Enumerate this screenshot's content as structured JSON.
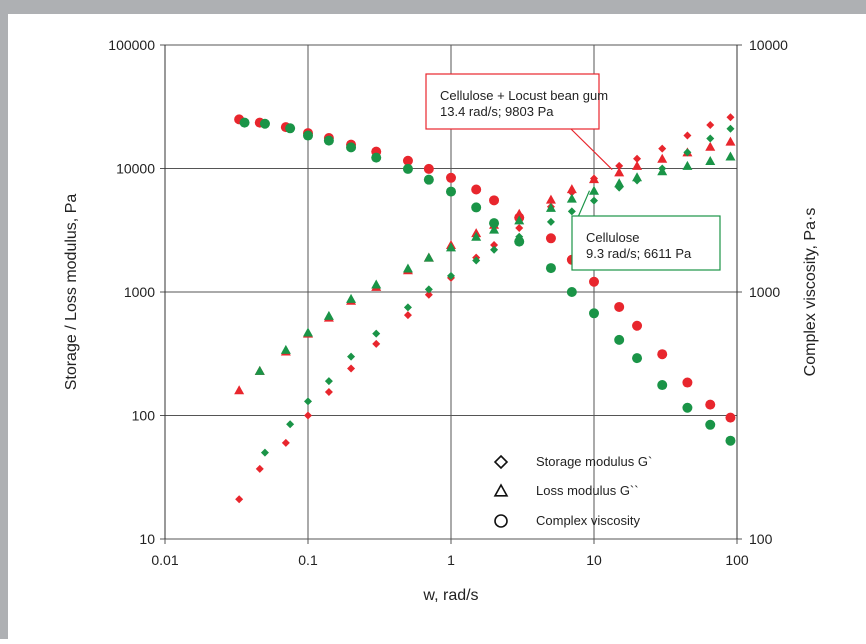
{
  "chart_data": {
    "type": "scatter",
    "title": "",
    "xlabel": "w, rad/s",
    "ylabel": "Storage / Loss modulus, Pa",
    "y2label": "Complex viscosity, Pa·s",
    "xscale": "log",
    "yscale": "log",
    "y2scale": "log",
    "xlim": [
      0.01,
      100
    ],
    "ylim": [
      10,
      100000
    ],
    "y2lim": [
      100,
      10000
    ],
    "x_ticks": [
      "0.01",
      "0.1",
      "1",
      "10",
      "100"
    ],
    "y_ticks": [
      "10",
      "100",
      "1000",
      "10000",
      "100000"
    ],
    "y2_ticks": [
      "100",
      "1000",
      "10000"
    ],
    "grid": true,
    "legend_position": "bottom-right",
    "legend": [
      {
        "marker": "diamond",
        "label": "Storage modulus G`"
      },
      {
        "marker": "triangle",
        "label": "Loss modulus G``"
      },
      {
        "marker": "circle",
        "label": "Complex viscosity"
      }
    ],
    "colors": {
      "cellulose_lbg": "#e8262d",
      "cellulose": "#1a9447",
      "axis": "#333333",
      "grid": "#555555"
    },
    "annotations": [
      {
        "lines": [
          "Cellulose + Locust bean gum",
          "13.4 rad/s; 9803 Pa"
        ],
        "box_color": "#e8262d",
        "point": [
          13.4,
          9803
        ]
      },
      {
        "lines": [
          "Cellulose",
          "9.3 rad/s; 6611 Pa"
        ],
        "box_color": "#1a9447",
        "point": [
          9.3,
          6611
        ]
      }
    ],
    "series": [
      {
        "group": "cellulose_lbg",
        "kind": "storage",
        "axis": "left",
        "x": [
          0.033,
          0.046,
          0.07,
          0.1,
          0.14,
          0.2,
          0.3,
          0.5,
          0.7,
          1,
          1.5,
          2,
          3,
          5,
          7,
          10,
          15,
          20,
          30,
          45,
          65,
          90
        ],
        "y": [
          21,
          37,
          60,
          100,
          155,
          240,
          380,
          650,
          950,
          1300,
          1900,
          2400,
          3300,
          4900,
          6400,
          8300,
          10500,
          12000,
          14500,
          18500,
          22500,
          26000
        ]
      },
      {
        "group": "cellulose",
        "kind": "storage",
        "axis": "left",
        "x": [
          0.05,
          0.075,
          0.1,
          0.14,
          0.2,
          0.3,
          0.5,
          0.7,
          1,
          1.5,
          2,
          3,
          5,
          7,
          10,
          15,
          20,
          30,
          45,
          65,
          90
        ],
        "y": [
          50,
          85,
          130,
          190,
          300,
          460,
          750,
          1050,
          1350,
          1800,
          2200,
          2800,
          3700,
          4500,
          5500,
          7000,
          8000,
          10000,
          13500,
          17500,
          21000
        ]
      },
      {
        "group": "cellulose_lbg",
        "kind": "loss",
        "axis": "left",
        "x": [
          0.033,
          0.046,
          0.07,
          0.1,
          0.14,
          0.2,
          0.3,
          0.5,
          0.7,
          1,
          1.5,
          2,
          3,
          5,
          7,
          10,
          15,
          20,
          30,
          45,
          65,
          90
        ],
        "y": [
          160,
          230,
          330,
          460,
          620,
          850,
          1100,
          1500,
          1900,
          2400,
          3000,
          3500,
          4300,
          5600,
          6800,
          8200,
          9300,
          10500,
          12000,
          13500,
          15000,
          16500
        ]
      },
      {
        "group": "cellulose",
        "kind": "loss",
        "axis": "left",
        "x": [
          0.046,
          0.07,
          0.1,
          0.14,
          0.2,
          0.3,
          0.5,
          0.7,
          1,
          1.5,
          2,
          3,
          5,
          7,
          10,
          15,
          20,
          30,
          45,
          65,
          90
        ],
        "y": [
          230,
          340,
          470,
          640,
          880,
          1150,
          1550,
          1900,
          2300,
          2800,
          3200,
          3800,
          4800,
          5700,
          6600,
          7600,
          8500,
          9500,
          10500,
          11500,
          12500
        ]
      },
      {
        "group": "cellulose_lbg",
        "kind": "viscosity",
        "axis": "right",
        "x": [
          0.033,
          0.046,
          0.07,
          0.1,
          0.14,
          0.2,
          0.3,
          0.5,
          0.7,
          1,
          1.5,
          2,
          3,
          5,
          7,
          10,
          15,
          20,
          30,
          45,
          65,
          90
        ],
        "y": [
          5000,
          4850,
          4650,
          4400,
          4200,
          3950,
          3700,
          3400,
          3150,
          2900,
          2600,
          2350,
          2000,
          1650,
          1350,
          1100,
          870,
          730,
          560,
          430,
          350,
          310
        ]
      },
      {
        "group": "cellulose",
        "kind": "viscosity",
        "axis": "right",
        "x": [
          0.036,
          0.05,
          0.075,
          0.1,
          0.14,
          0.2,
          0.3,
          0.5,
          0.7,
          1,
          1.5,
          2,
          3,
          5,
          7,
          10,
          15,
          20,
          30,
          45,
          65,
          90
        ],
        "y": [
          4850,
          4800,
          4600,
          4300,
          4100,
          3850,
          3500,
          3150,
          2850,
          2550,
          2200,
          1900,
          1600,
          1250,
          1000,
          820,
          640,
          540,
          420,
          340,
          290,
          250
        ]
      }
    ]
  }
}
